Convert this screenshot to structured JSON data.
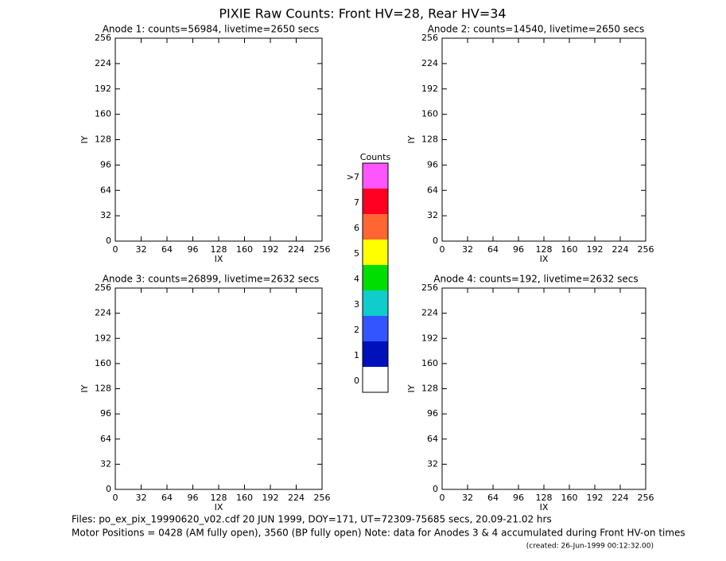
{
  "title": "PIXIE Raw Counts:  Front HV=28, Rear HV=34",
  "chart_data": [
    {
      "type": "heatmap",
      "title": "Anode 1: counts=56984, livetime=2650 secs",
      "xlabel": "IX",
      "ylabel": "IY",
      "xlim": [
        0,
        256
      ],
      "ylim": [
        0,
        256
      ],
      "xticks": [
        0,
        32,
        64,
        96,
        128,
        160,
        192,
        224,
        256
      ],
      "yticks": [
        0,
        32,
        64,
        96,
        128,
        160,
        192,
        224,
        256
      ]
    },
    {
      "type": "heatmap",
      "title": "Anode 2: counts=14540, livetime=2650 secs",
      "xlabel": "IX",
      "ylabel": "IY",
      "xlim": [
        0,
        256
      ],
      "ylim": [
        0,
        256
      ],
      "xticks": [
        0,
        32,
        64,
        96,
        128,
        160,
        192,
        224,
        256
      ],
      "yticks": [
        0,
        32,
        64,
        96,
        128,
        160,
        192,
        224,
        256
      ]
    },
    {
      "type": "heatmap",
      "title": "Anode 3: counts=26899, livetime=2632 secs",
      "xlabel": "IX",
      "ylabel": "IY",
      "xlim": [
        0,
        256
      ],
      "ylim": [
        0,
        256
      ],
      "xticks": [
        0,
        32,
        64,
        96,
        128,
        160,
        192,
        224,
        256
      ],
      "yticks": [
        0,
        32,
        64,
        96,
        128,
        160,
        192,
        224,
        256
      ]
    },
    {
      "type": "heatmap",
      "title": "Anode 4: counts=192, livetime=2632 secs",
      "xlabel": "IX",
      "ylabel": "IY",
      "xlim": [
        0,
        256
      ],
      "ylim": [
        0,
        256
      ],
      "xticks": [
        0,
        32,
        64,
        96,
        128,
        160,
        192,
        224,
        256
      ],
      "yticks": [
        0,
        32,
        64,
        96,
        128,
        160,
        192,
        224,
        256
      ]
    }
  ],
  "colorbar": {
    "title": "Counts",
    "labels": [
      ">7",
      "7",
      "6",
      "5",
      "4",
      "3",
      "2",
      "1",
      "0"
    ],
    "colors": [
      "#ff55ff",
      "#ff0022",
      "#ff6633",
      "#ffff00",
      "#00dd00",
      "#11cccc",
      "#3355ff",
      "#0011bb",
      "#ffffff"
    ]
  },
  "footer": [
    "Files: po_ex_pix_19990620_v02.cdf    20 JUN 1999, DOY=171, UT=72309-75685 secs, 20.09-21.02 hrs",
    "Motor Positions = 0428 (AM fully open), 3560 (BP fully open)    Note: data for Anodes 3 & 4 accumulated during Front HV-on times",
    "(created: 26-Jun-1999 00:12:32.00)"
  ]
}
